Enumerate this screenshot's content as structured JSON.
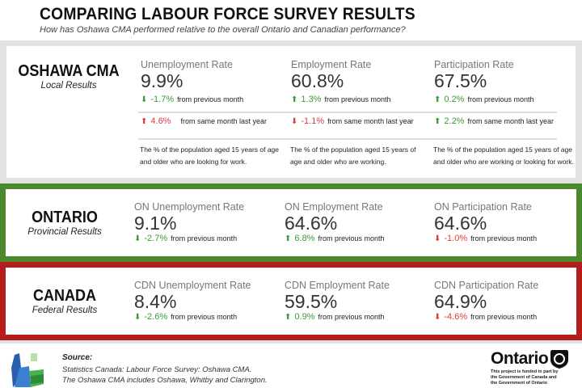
{
  "header": {
    "title": "COMPARING LABOUR FORCE SURVEY RESULTS",
    "subtitle": "How has Oshawa CMA performed relative to the overall Ontario and Canadian performance?"
  },
  "oshawa": {
    "name": "OSHAWA CMA",
    "sub": "Local Results",
    "metrics": [
      {
        "label": "Unemployment Rate",
        "value": "9.9%",
        "month": "-1.7%",
        "month_dir": "down",
        "year": "4.6%",
        "year_dir": "up",
        "desc1": "The % of the population aged 15 years of age",
        "desc2": "and older who are looking for work."
      },
      {
        "label": "Employment Rate",
        "value": "60.8%",
        "month": "1.3%",
        "month_dir": "up",
        "year": "-1.1%",
        "year_dir": "down",
        "desc1": "The % of the population aged 15 years of",
        "desc2": "age and older who are working."
      },
      {
        "label": "Participation Rate",
        "value": "67.5%",
        "month": "0.2%",
        "month_dir": "up",
        "year": "2.2%",
        "year_dir": "up",
        "desc1": "The % of the population aged 15 years of age",
        "desc2": "and older who are working or looking for work."
      }
    ],
    "from_month": "from previous month",
    "from_year": "from same month last year"
  },
  "ontario": {
    "name": "ONTARIO",
    "sub": "Provincial Results",
    "metrics": [
      {
        "label": "ON Unemployment Rate",
        "value": "9.1%",
        "month": "-2.7%"
      },
      {
        "label": "ON Employment Rate",
        "value": "64.6%",
        "month": "6.8%"
      },
      {
        "label": "ON Participation Rate",
        "value": "64.6%",
        "month": "-1.0%"
      }
    ]
  },
  "canada": {
    "name": "CANADA",
    "sub": "Federal Results",
    "metrics": [
      {
        "label": "CDN Unemployment Rate",
        "value": "8.4%",
        "month": "-2.6%"
      },
      {
        "label": "CDN Employment Rate",
        "value": "59.5%",
        "month": "0.9%"
      },
      {
        "label": "CDN Participation Rate",
        "value": "64.9%",
        "month": "-4.6%"
      }
    ]
  },
  "footer": {
    "source_heading": "Source:",
    "source_line1": "Statistics Canada: Labour Force Survey: Oshawa CMA.",
    "source_line2": "The Oshawa CMA includes Oshawa, Whitby and Clarington.",
    "ontario_logo": "Ontario",
    "funding_note": "This project is funded in part by the Government of Canada and the Government of Ontario"
  },
  "colors": {
    "good": "#3a9a3a",
    "bad": "#e03a3a",
    "ontario_band": "#4a8a2a",
    "canada_band": "#b71c1c"
  }
}
